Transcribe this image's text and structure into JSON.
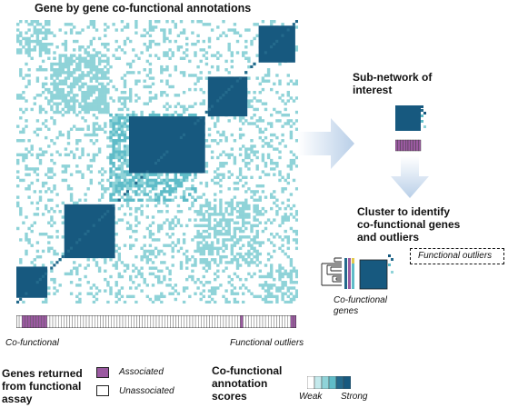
{
  "title": "Gene by gene co-functional annotations",
  "bar_labels": {
    "left": "Co-functional",
    "right": "Functional outliers"
  },
  "subnetwork_title": [
    "Sub-network of",
    "interest"
  ],
  "cluster_title": [
    "Cluster to identify",
    "co-functional genes",
    "and outliers"
  ],
  "outliers_label": "Functional outliers",
  "cofunctional_genes_label": [
    "Co-functional",
    "genes"
  ],
  "legend": {
    "genes_title": [
      "Genes returned",
      "from functional",
      "assay"
    ],
    "associated": "Associated",
    "unassociated": "Unassociated",
    "scores_title": [
      "Co-functional",
      "annotation",
      "scores"
    ],
    "weak": "Weak",
    "strong": "Strong"
  },
  "colors": {
    "scale": [
      "#ffffff",
      "#c4e9ec",
      "#8fd3d8",
      "#5fbcc8",
      "#246a8c",
      "#17597f"
    ],
    "associated": "#9b5aa1",
    "arrow": "#c7d7ea"
  }
}
